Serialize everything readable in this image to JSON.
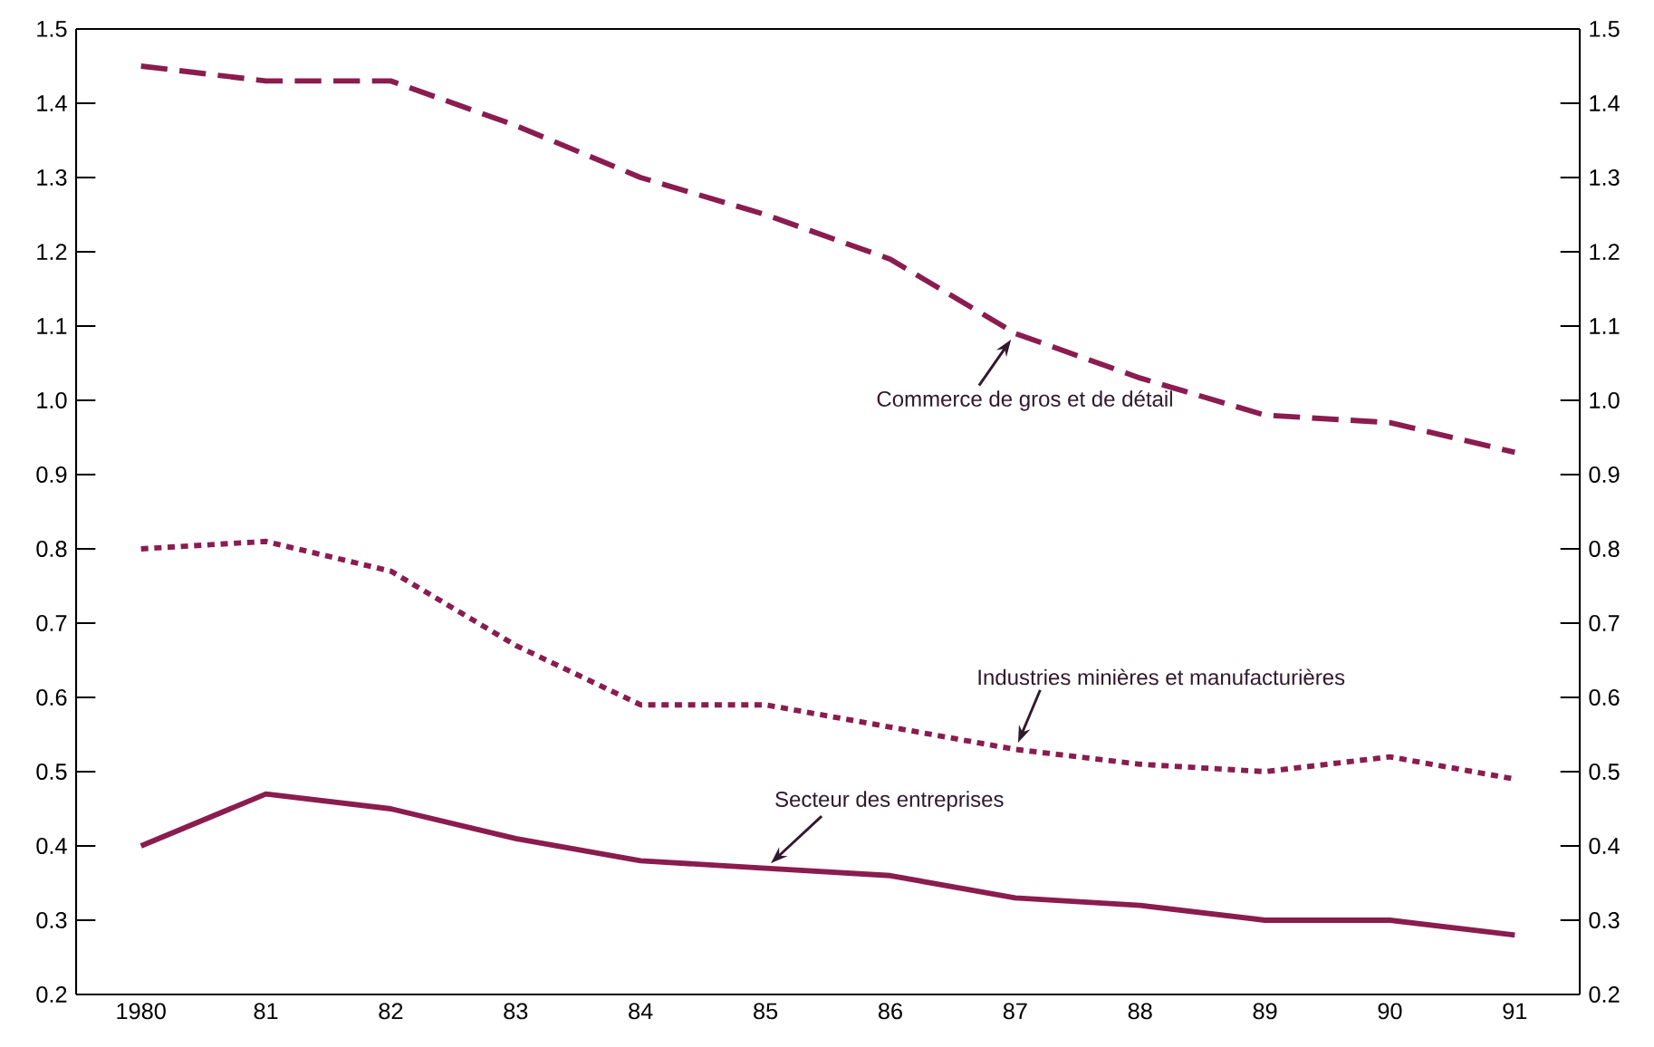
{
  "chart_data": {
    "type": "line",
    "categories": [
      "1980",
      "81",
      "82",
      "83",
      "84",
      "85",
      "86",
      "87",
      "88",
      "89",
      "90",
      "91"
    ],
    "series": [
      {
        "color": "#8a1c4f",
        "line_style": "dashed",
        "values": [
          1.45,
          1.43,
          1.43,
          1.37,
          1.3,
          1.25,
          1.19,
          1.09,
          1.03,
          0.98,
          0.97,
          0.93
        ]
      },
      {
        "color": "#8a1c4f",
        "line_style": "dotted",
        "values": [
          0.8,
          0.81,
          0.77,
          0.67,
          0.59,
          0.59,
          0.56,
          0.53,
          0.51,
          0.5,
          0.52,
          0.49
        ]
      },
      {
        "color": "#8a1c4f",
        "line_style": "solid",
        "values": [
          0.4,
          0.47,
          0.45,
          0.41,
          0.38,
          0.37,
          0.36,
          0.33,
          0.32,
          0.3,
          0.3,
          0.28
        ]
      }
    ],
    "annotations": [
      {
        "text": "Commerce de gros et de détail",
        "x": "87",
        "y": 1.09
      },
      {
        "text": "Industries minières et manufacturières",
        "x": "87",
        "y": 0.53
      },
      {
        "text": "Secteur des entreprises",
        "x": "85",
        "y": 0.37
      }
    ],
    "ylim": [
      0.2,
      1.5
    ],
    "yticks": [
      0.2,
      0.3,
      0.4,
      0.5,
      0.6,
      0.7,
      0.8,
      0.9,
      {
        "value": 1.0,
        "label": "1.0"
      },
      1.1,
      1.2,
      1.3,
      1.4,
      1.5
    ],
    "y2lim": [
      0.2,
      1.5
    ],
    "y2ticks": [
      0.2,
      0.3,
      0.4,
      0.5,
      0.6,
      0.7,
      0.8,
      0.9,
      {
        "value": 1.0,
        "label": "1.0"
      },
      1.1,
      1.2,
      1.3,
      1.4,
      1.5
    ],
    "grid": false,
    "marker": "none"
  }
}
